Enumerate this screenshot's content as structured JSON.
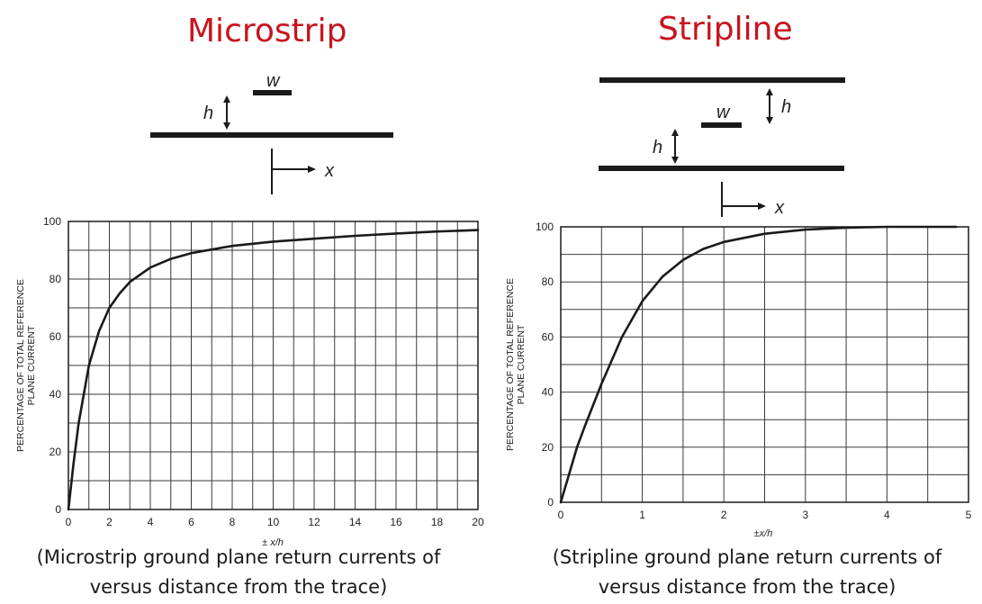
{
  "panels": [
    {
      "title": "Microstrip",
      "caption_line1": "(Microstrip ground plane return currents of",
      "caption_line2": "versus distance from the trace)",
      "diagram": {
        "label_w": "w",
        "label_h": "h",
        "label_x": "x"
      }
    },
    {
      "title": "Stripline",
      "caption_line1": "(Stripline ground plane return currents of",
      "caption_line2": "versus distance from the trace)",
      "diagram": {
        "label_w": "w",
        "label_h": "h",
        "label_x": "x"
      }
    }
  ],
  "chart_data": [
    {
      "type": "line",
      "xlabel": "± x/h",
      "ylabel": "PERCENTAGE OF TOTAL REFERENCE PLANE CURRENT",
      "xlim": [
        0,
        20
      ],
      "ylim": [
        0,
        100
      ],
      "xticks": [
        "0",
        "2",
        "4",
        "6",
        "8",
        "10",
        "12",
        "14",
        "16",
        "18",
        "20"
      ],
      "yticks": [
        "0",
        "20",
        "40",
        "60",
        "80",
        "100"
      ],
      "grid": true,
      "line_color": "#1a1a1a",
      "series": [
        {
          "x": [
            0,
            0.25,
            0.5,
            0.75,
            1,
            1.5,
            2,
            2.5,
            3,
            4,
            5,
            6,
            8,
            10,
            12,
            14,
            16,
            18,
            20
          ],
          "values": [
            0,
            16,
            30,
            40,
            50,
            62,
            70,
            75,
            79,
            84,
            87,
            89,
            91.5,
            93,
            94,
            95,
            95.8,
            96.5,
            97
          ]
        }
      ]
    },
    {
      "type": "line",
      "xlabel": "±x/h",
      "ylabel": "PERCENTAGE OF TOTAL REFERENCE PLANE CURRENT",
      "xlim": [
        0,
        5
      ],
      "ylim": [
        0,
        100
      ],
      "xticks": [
        "0",
        "1",
        "2",
        "3",
        "4",
        "5"
      ],
      "yticks": [
        "0",
        "20",
        "40",
        "60",
        "80",
        "100"
      ],
      "grid": true,
      "line_color": "#1a1a1a",
      "series": [
        {
          "x": [
            0,
            0.1,
            0.2,
            0.3,
            0.5,
            0.75,
            1,
            1.25,
            1.5,
            1.75,
            2,
            2.5,
            3,
            3.5,
            4,
            4.5,
            4.85
          ],
          "values": [
            0,
            10,
            20,
            28,
            43,
            60,
            73,
            82,
            88,
            92,
            94.5,
            97.5,
            99,
            99.7,
            100,
            100,
            100
          ]
        }
      ]
    }
  ]
}
